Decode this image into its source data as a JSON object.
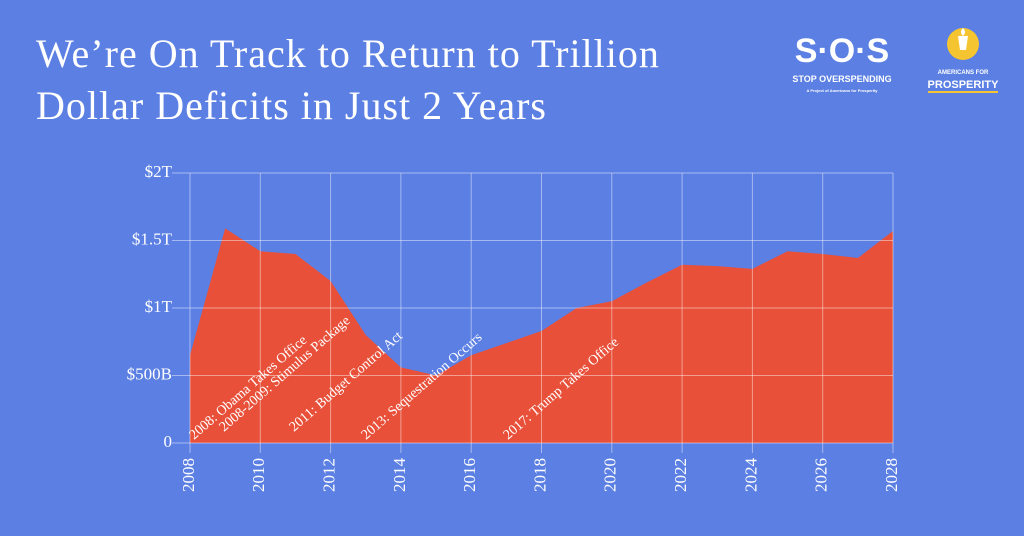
{
  "chart_data": {
    "type": "area",
    "title": "We’re On Track to Return to Trillion Dollar Deficits in Just 2 Years",
    "x": [
      2008,
      2009,
      2010,
      2011,
      2012,
      2013,
      2014,
      2015,
      2016,
      2017,
      2018,
      2019,
      2020,
      2021,
      2022,
      2023,
      2024,
      2025,
      2026,
      2027,
      2028
    ],
    "values": [
      650,
      1590,
      1420,
      1400,
      1200,
      800,
      560,
      500,
      650,
      740,
      830,
      1000,
      1050,
      1190,
      1320,
      1310,
      1290,
      1420,
      1400,
      1370,
      1570
    ],
    "color": "#e8503a",
    "xlim": [
      2008,
      2028
    ],
    "xticks": [
      2008,
      2010,
      2012,
      2014,
      2016,
      2018,
      2020,
      2022,
      2024,
      2026,
      2028
    ],
    "ylim": [
      0,
      2000
    ],
    "yticks": [
      0,
      {
        "value": 500,
        "label": "$500B"
      },
      {
        "value": 1000,
        "label": "$1T"
      },
      {
        "value": 1500,
        "label": "$1.5T"
      },
      {
        "value": 2000,
        "label": "$2T"
      }
    ],
    "grid": true,
    "annotations": [
      "2008: Obama Takes Office",
      "2008-2009: Stimulus Package",
      "2011: Budget Control Act",
      "2013: Sequestration Occurs",
      "2017: Trump Takes Office"
    ]
  },
  "logos": {
    "sos": "S·O·S",
    "sos_tagline": "STOP OVERSPENDING",
    "sos_sub": "A Project of Americans for Prosperity",
    "afp_top": "AMERICANS FOR",
    "afp_bottom": "PROSPERITY"
  }
}
